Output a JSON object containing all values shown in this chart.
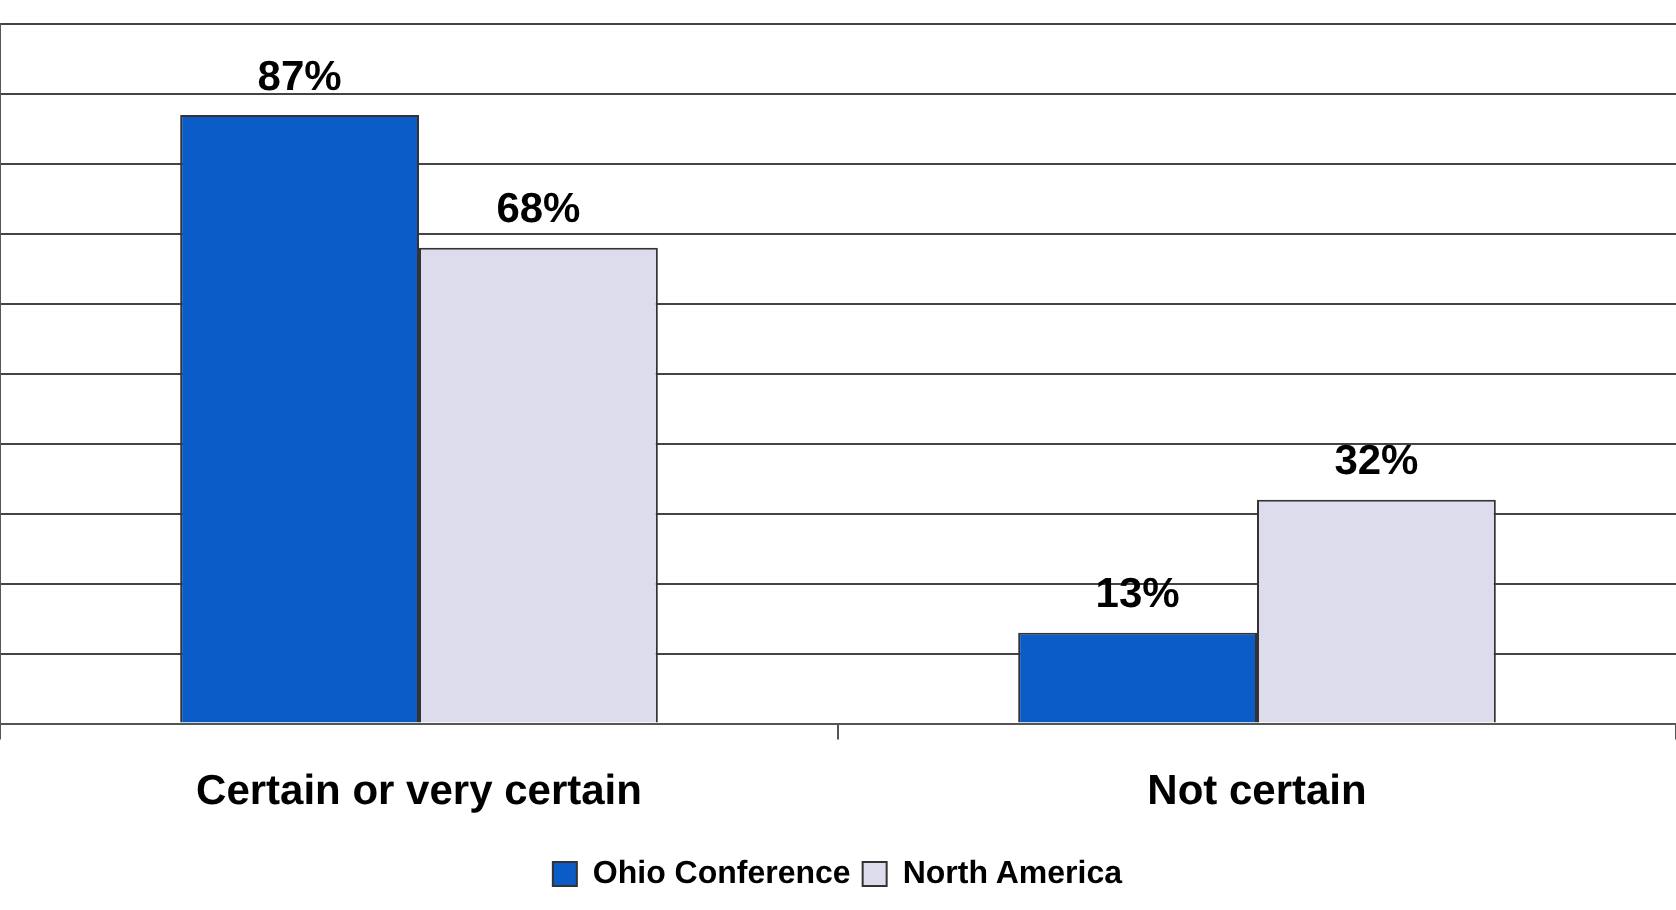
{
  "chart_data": {
    "type": "bar",
    "categories": [
      "Certain or very certain",
      "Not certain"
    ],
    "series": [
      {
        "name": "Ohio Conference",
        "color": "#0b5cc6",
        "values": [
          87,
          13
        ],
        "value_labels": [
          "87%",
          "13%"
        ]
      },
      {
        "name": "North America",
        "color": "#dddcec",
        "values": [
          68,
          32
        ],
        "value_labels": [
          "68%",
          "32%"
        ]
      }
    ],
    "ylim": [
      0,
      100
    ],
    "yticks": [
      {
        "value": 0,
        "label": null
      },
      {
        "value": 10,
        "label": null
      },
      {
        "value": 20,
        "label": null
      },
      {
        "value": 30,
        "label": null
      },
      {
        "value": 40,
        "label": null
      },
      {
        "value": 50,
        "label": null
      },
      {
        "value": 60,
        "label": null
      },
      {
        "value": 70,
        "label": null
      },
      {
        "value": 80,
        "label": null
      },
      {
        "value": 90,
        "label": null
      },
      {
        "value": 100,
        "label": null
      }
    ],
    "grid": "y",
    "legend": "bottom"
  }
}
